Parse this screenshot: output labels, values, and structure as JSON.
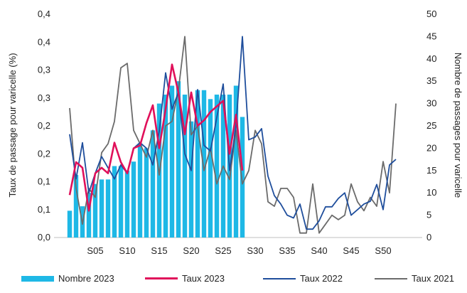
{
  "chart_data": {
    "type": "bar+line",
    "x_tick_labels": [
      "S05",
      "S10",
      "S15",
      "S20",
      "S25",
      "S30",
      "S35",
      "S40",
      "S45",
      "S50"
    ],
    "x_tick_weeks": [
      5,
      10,
      15,
      20,
      25,
      30,
      35,
      40,
      45,
      50
    ],
    "y_left": {
      "label": "Taux de passage pour varicelle (%)",
      "ticks": [
        "0,0",
        "0,1",
        "0,1",
        "0,2",
        "0,2",
        "0,3",
        "0,3",
        "0,4",
        "0,4"
      ],
      "range": [
        0,
        0.4
      ]
    },
    "y_right": {
      "label": "Nombre de passages pour varicelle",
      "ticks": [
        "0",
        "5",
        "10",
        "15",
        "20",
        "25",
        "30",
        "35",
        "40",
        "45",
        "50"
      ],
      "range": [
        0,
        50
      ]
    },
    "series": [
      {
        "name": "Nombre 2023",
        "kind": "bar",
        "axis": "right",
        "color": "#1eb8e6",
        "weeks": [
          1,
          2,
          3,
          4,
          5,
          6,
          7,
          8,
          9,
          10,
          11,
          12,
          13,
          14,
          15,
          16,
          17,
          18,
          19,
          20,
          21,
          22,
          23,
          24,
          25,
          26,
          27,
          28
        ],
        "values": [
          6,
          14,
          7,
          10,
          12,
          13,
          13,
          16,
          16,
          15,
          17,
          21,
          20,
          24,
          30,
          32,
          34,
          35,
          32,
          26,
          33,
          33,
          31,
          32,
          32,
          32,
          34,
          27
        ]
      },
      {
        "name": "Taux 2023",
        "kind": "line",
        "axis": "left",
        "color": "#e0105a",
        "weeks": [
          1,
          2,
          3,
          4,
          5,
          6,
          7,
          8,
          9,
          10,
          11,
          12,
          13,
          14,
          15,
          16,
          17,
          18,
          19,
          20,
          21,
          22,
          23,
          24,
          25,
          26,
          27,
          28
        ],
        "values": [
          0.076,
          0.135,
          0.125,
          0.048,
          0.115,
          0.125,
          0.115,
          0.17,
          0.135,
          0.115,
          0.16,
          0.165,
          0.205,
          0.237,
          0.16,
          0.23,
          0.31,
          0.26,
          0.185,
          0.26,
          0.2,
          0.21,
          0.225,
          0.235,
          0.245,
          0.15,
          0.22,
          0.12
        ]
      },
      {
        "name": "Taux 2022",
        "kind": "line",
        "axis": "left",
        "color": "#1f4e9c",
        "weeks": [
          1,
          2,
          3,
          4,
          5,
          6,
          7,
          8,
          9,
          10,
          11,
          12,
          13,
          14,
          15,
          16,
          17,
          18,
          19,
          20,
          21,
          22,
          23,
          24,
          25,
          26,
          27,
          28,
          29,
          30,
          31,
          32,
          33,
          34,
          35,
          36,
          37,
          38,
          39,
          40,
          41,
          42,
          43,
          44,
          45,
          46,
          47,
          48,
          49,
          50,
          51,
          52
        ],
        "values": [
          0.185,
          0.105,
          0.17,
          0.08,
          0.115,
          0.145,
          0.125,
          0.105,
          0.13,
          0.115,
          0.16,
          0.17,
          0.16,
          0.13,
          0.19,
          0.295,
          0.23,
          0.26,
          0.15,
          0.12,
          0.265,
          0.165,
          0.155,
          0.215,
          0.275,
          0.12,
          0.2,
          0.36,
          0.175,
          0.18,
          0.195,
          0.11,
          0.075,
          0.06,
          0.04,
          0.035,
          0.06,
          0.015,
          0.015,
          0.03,
          0.055,
          0.055,
          0.07,
          0.08,
          0.04,
          0.05,
          0.06,
          0.065,
          0.095,
          0.05,
          0.13,
          0.14
        ]
      },
      {
        "name": "Taux 2021",
        "kind": "line",
        "axis": "right",
        "color": "#6b6b6b",
        "weeks": [
          1,
          2,
          3,
          4,
          5,
          6,
          7,
          8,
          9,
          10,
          11,
          12,
          13,
          14,
          15,
          16,
          17,
          18,
          19,
          20,
          21,
          22,
          23,
          24,
          25,
          26,
          27,
          28,
          29,
          30,
          31,
          32,
          33,
          34,
          35,
          36,
          37,
          38,
          39,
          40,
          41,
          42,
          43,
          44,
          45,
          46,
          47,
          48,
          49,
          50,
          51,
          52
        ],
        "values": [
          29,
          11,
          3,
          11,
          9,
          19,
          21,
          26,
          38,
          39,
          24,
          21,
          18,
          24,
          14,
          25,
          26,
          33,
          45,
          23,
          25,
          15,
          20,
          12,
          16,
          13,
          24,
          12,
          15,
          24,
          21,
          8,
          7,
          11,
          11,
          9,
          1,
          1,
          12,
          1,
          3,
          5,
          4,
          5,
          12,
          8,
          6,
          9,
          7,
          17,
          10,
          30
        ]
      }
    ]
  }
}
